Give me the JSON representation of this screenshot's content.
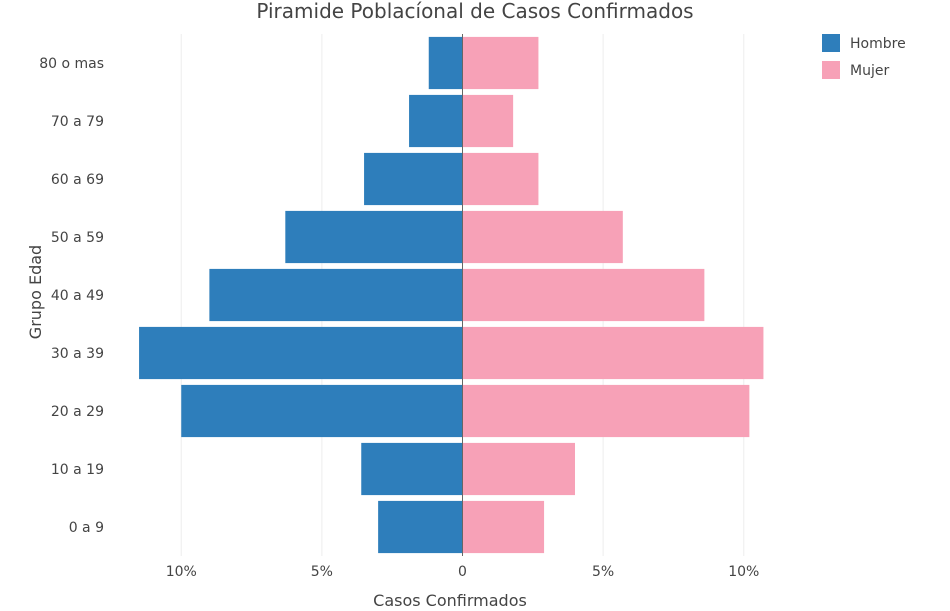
{
  "chart_data": {
    "type": "bar",
    "orientation": "horizontal",
    "title": "Piramide Poblacíonal de Casos Confirmados",
    "xlabel": "Casos Confirmados",
    "ylabel": "Grupo Edad",
    "categories": [
      "0 a 9",
      "10 a 19",
      "20 a 29",
      "30 a 39",
      "40 a 49",
      "50 a 59",
      "60 a 69",
      "70 a 79",
      "80 o mas"
    ],
    "series": [
      {
        "name": "Hombre",
        "color": "#2e7ebb",
        "side": "left",
        "values": [
          3.0,
          3.6,
          10.0,
          11.5,
          9.0,
          6.3,
          3.5,
          1.9,
          1.2
        ]
      },
      {
        "name": "Mujer",
        "color": "#f7a1b7",
        "side": "right",
        "values": [
          2.9,
          4.0,
          10.2,
          10.7,
          8.6,
          5.7,
          2.7,
          1.8,
          2.7
        ]
      }
    ],
    "xlim": [
      -12,
      12
    ],
    "xticks": [
      -10,
      -5,
      0,
      5,
      10
    ],
    "xtick_labels": [
      "10%",
      "5%",
      "0",
      "5%",
      "10%"
    ],
    "grid": true,
    "legend_position": "top-right"
  }
}
